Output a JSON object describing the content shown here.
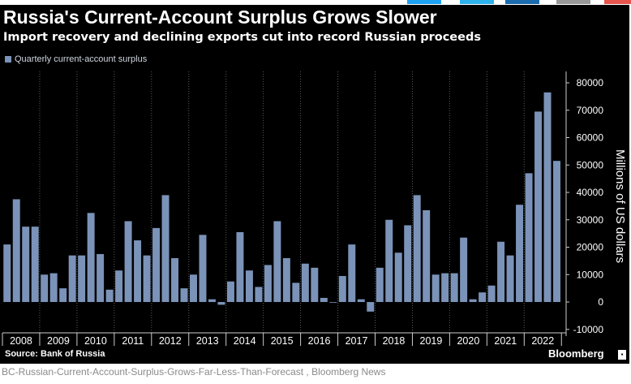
{
  "chart_data": {
    "type": "bar",
    "title": "Russia's Current-Account Surplus Grows Slower",
    "subtitle": "Import recovery and declining exports cut into record Russian proceeds",
    "legend": [
      "Quarterly current-account surplus"
    ],
    "legend_placement": "top-left",
    "ylabel": "Millions of US dollars",
    "ylim": [
      -10000,
      80000
    ],
    "yticks": [
      -10000,
      0,
      10000,
      20000,
      30000,
      40000,
      50000,
      60000,
      70000,
      80000
    ],
    "ytick_labels": [
      "-10000",
      "0",
      "10000",
      "20000",
      "30000",
      "40000",
      "50000",
      "60000",
      "70000",
      "80000"
    ],
    "grid": "vertical dotted at year boundaries",
    "xtick_labels": [
      "2008",
      "2009",
      "2010",
      "2011",
      "2012",
      "2013",
      "2014",
      "2015",
      "2016",
      "2017",
      "2018",
      "2019",
      "2020",
      "2021",
      "2022"
    ],
    "series": [
      {
        "name": "Quarterly current-account surplus",
        "color": "#7b93b8",
        "values": [
          21000,
          37500,
          27500,
          27500,
          10000,
          10500,
          5000,
          17000,
          17000,
          32500,
          17500,
          4500,
          11500,
          29500,
          22500,
          17000,
          27000,
          39000,
          16000,
          5000,
          10000,
          24500,
          1000,
          -1000,
          7500,
          25500,
          11500,
          5500,
          13500,
          29500,
          16000,
          7000,
          14000,
          12500,
          1500,
          0,
          9500,
          21000,
          1000,
          -3500,
          12500,
          30000,
          18000,
          28000,
          39000,
          33500,
          10000,
          10500,
          10500,
          23500,
          1000,
          3500,
          6000,
          22000,
          17000,
          35500,
          47000,
          69500,
          76500,
          51500
        ]
      }
    ]
  },
  "source": "Source: Bank of Russia",
  "brand": "Bloomberg",
  "caption": "BC-Russian-Current-Account-Surplus-Grows-Far-Less-Than-Forecast , Bloomberg News"
}
